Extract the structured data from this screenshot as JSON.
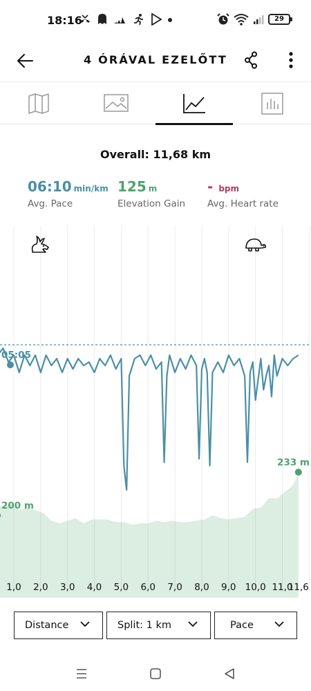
{
  "status_bar": {
    "time": "18:16",
    "battery": "29",
    "notification_icons": [
      "missed-call-icon",
      "ghost-app-icon",
      "adidas-icon",
      "runner-icon",
      "play-store-icon",
      "dot-icon"
    ],
    "right_icons": [
      "alarm-icon",
      "wifi-icon",
      "signal-icon",
      "battery-icon"
    ]
  },
  "header": {
    "title": "4 ÓRÁVAL EZELŐTT",
    "back_icon": "arrow-left-icon",
    "share_icon": "share-icon",
    "menu_icon": "more-vertical-icon"
  },
  "tabs": [
    {
      "name": "map",
      "icon": "map-icon",
      "active": false
    },
    {
      "name": "photos",
      "icon": "image-icon",
      "active": false
    },
    {
      "name": "charts",
      "icon": "line-chart-icon",
      "active": true
    },
    {
      "name": "splits",
      "icon": "bar-chart-icon",
      "active": false
    }
  ],
  "summary": {
    "overall": "Overall: 11,68 km",
    "pace": {
      "value": "06:10",
      "unit": "min/km",
      "label": "Avg. Pace",
      "color": "#4a8fa6"
    },
    "elevation": {
      "value": "125",
      "unit": "m",
      "label": "Elevation Gain",
      "color": "#4fa36e"
    },
    "heart_rate": {
      "value": "-",
      "unit": "bpm",
      "label": "Avg. Heart rate",
      "color": "#b03c5a"
    }
  },
  "chart_data": {
    "type": "line",
    "xlabel": "",
    "ylabel": "",
    "grid": true,
    "x_tick_labels": [
      "1,0",
      "2,0",
      "3,0",
      "4,0",
      "5,0",
      "6,0",
      "7,0",
      "8,0",
      "9,0",
      "10,0",
      "11,0",
      "11,6"
    ],
    "fast_icon": "rabbit-icon",
    "slow_icon": "turtle-icon",
    "series": [
      {
        "kind": "pace",
        "color": "#4a8fa6",
        "best_label": "05:05",
        "avg_line": true,
        "x_km": [
          0.0,
          0.1,
          0.2,
          0.3,
          0.4,
          0.5,
          0.6,
          0.8,
          1.0,
          1.2,
          1.4,
          1.6,
          1.8,
          2.0,
          2.2,
          2.4,
          2.6,
          2.8,
          3.0,
          3.2,
          3.4,
          3.6,
          3.8,
          4.0,
          4.2,
          4.4,
          4.6,
          4.8,
          5.0,
          5.1,
          5.2,
          5.3,
          5.5,
          5.7,
          5.9,
          6.1,
          6.3,
          6.5,
          6.6,
          6.7,
          6.8,
          7.0,
          7.2,
          7.4,
          7.6,
          7.8,
          7.9,
          8.0,
          8.1,
          8.2,
          8.3,
          8.4,
          8.6,
          8.8,
          9.0,
          9.2,
          9.4,
          9.6,
          9.7,
          9.8,
          9.9,
          10.0,
          10.2,
          10.3,
          10.4,
          10.5,
          10.6,
          10.7,
          10.8,
          11.0,
          11.2,
          11.4,
          11.6
        ],
        "pace_min_per_km": [
          6.35,
          5.9,
          5.45,
          5.35,
          5.3,
          5.25,
          5.2,
          5.4,
          5.3,
          5.55,
          5.3,
          5.45,
          5.3,
          5.55,
          5.3,
          5.45,
          5.35,
          5.55,
          5.35,
          5.5,
          5.35,
          5.45,
          5.4,
          5.55,
          5.35,
          5.45,
          5.3,
          5.5,
          5.35,
          6.9,
          7.25,
          5.6,
          5.35,
          5.3,
          5.45,
          5.3,
          5.5,
          5.4,
          6.85,
          5.6,
          5.3,
          5.55,
          5.35,
          5.5,
          5.3,
          5.45,
          6.8,
          5.5,
          5.35,
          5.55,
          6.9,
          5.55,
          5.4,
          5.55,
          5.3,
          5.45,
          5.35,
          5.6,
          6.85,
          5.55,
          5.4,
          5.95,
          5.35,
          5.8,
          5.6,
          5.45,
          5.9,
          5.3,
          5.6,
          5.35,
          5.45,
          5.35,
          5.3
        ]
      },
      {
        "kind": "elevation",
        "color": "#4fa36e",
        "start_label": "200 m",
        "end_label": "233 m",
        "x_km": [
          0.0,
          0.3,
          0.6,
          0.9,
          1.2,
          1.5,
          1.8,
          2.1,
          2.4,
          2.7,
          3.0,
          3.3,
          3.6,
          3.9,
          4.2,
          4.5,
          4.8,
          5.1,
          5.4,
          5.7,
          6.0,
          6.3,
          6.6,
          6.9,
          7.2,
          7.5,
          7.8,
          8.1,
          8.4,
          8.7,
          9.0,
          9.3,
          9.6,
          9.9,
          10.2,
          10.5,
          10.8,
          11.1,
          11.4,
          11.6
        ],
        "elevation_m": [
          200,
          207,
          207,
          209,
          204,
          206,
          204,
          202,
          196,
          194,
          196,
          198,
          194,
          197,
          197,
          197,
          195,
          195,
          193,
          194,
          194,
          196,
          195,
          196,
          195,
          195,
          196,
          197,
          200,
          198,
          197,
          198,
          199,
          205,
          206,
          213,
          213,
          218,
          223,
          233
        ],
        "ylim": [
          180,
          240
        ]
      }
    ]
  },
  "selectors": [
    {
      "label": "Distance",
      "icon": "chevron-down-icon"
    },
    {
      "label": "Split: 1 km",
      "icon": "chevron-down-icon"
    },
    {
      "label": "Pace",
      "icon": "chevron-down-icon"
    }
  ],
  "nav_bar": [
    "recent-apps-icon",
    "home-icon",
    "back-icon"
  ]
}
